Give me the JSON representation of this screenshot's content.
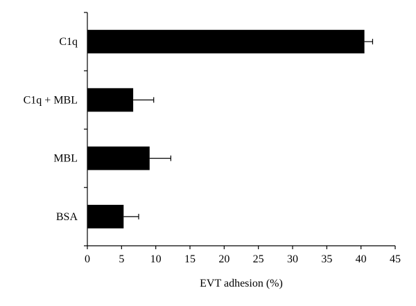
{
  "chart_data": {
    "type": "bar",
    "orientation": "horizontal",
    "categories": [
      "C1q",
      "C1q + MBL",
      "MBL",
      "BSA"
    ],
    "values": [
      40.5,
      6.7,
      9.1,
      5.3
    ],
    "errors": [
      1.2,
      3.0,
      3.1,
      2.2
    ],
    "xlabel": "EVT adhesion (%)",
    "ylabel": "",
    "title": "",
    "xlim": [
      0,
      45
    ],
    "xticks": [
      "0",
      "5",
      "10",
      "15",
      "20",
      "25",
      "30",
      "35",
      "40",
      "45"
    ],
    "grid": false,
    "legend": "none",
    "bar_color": "#000000"
  }
}
